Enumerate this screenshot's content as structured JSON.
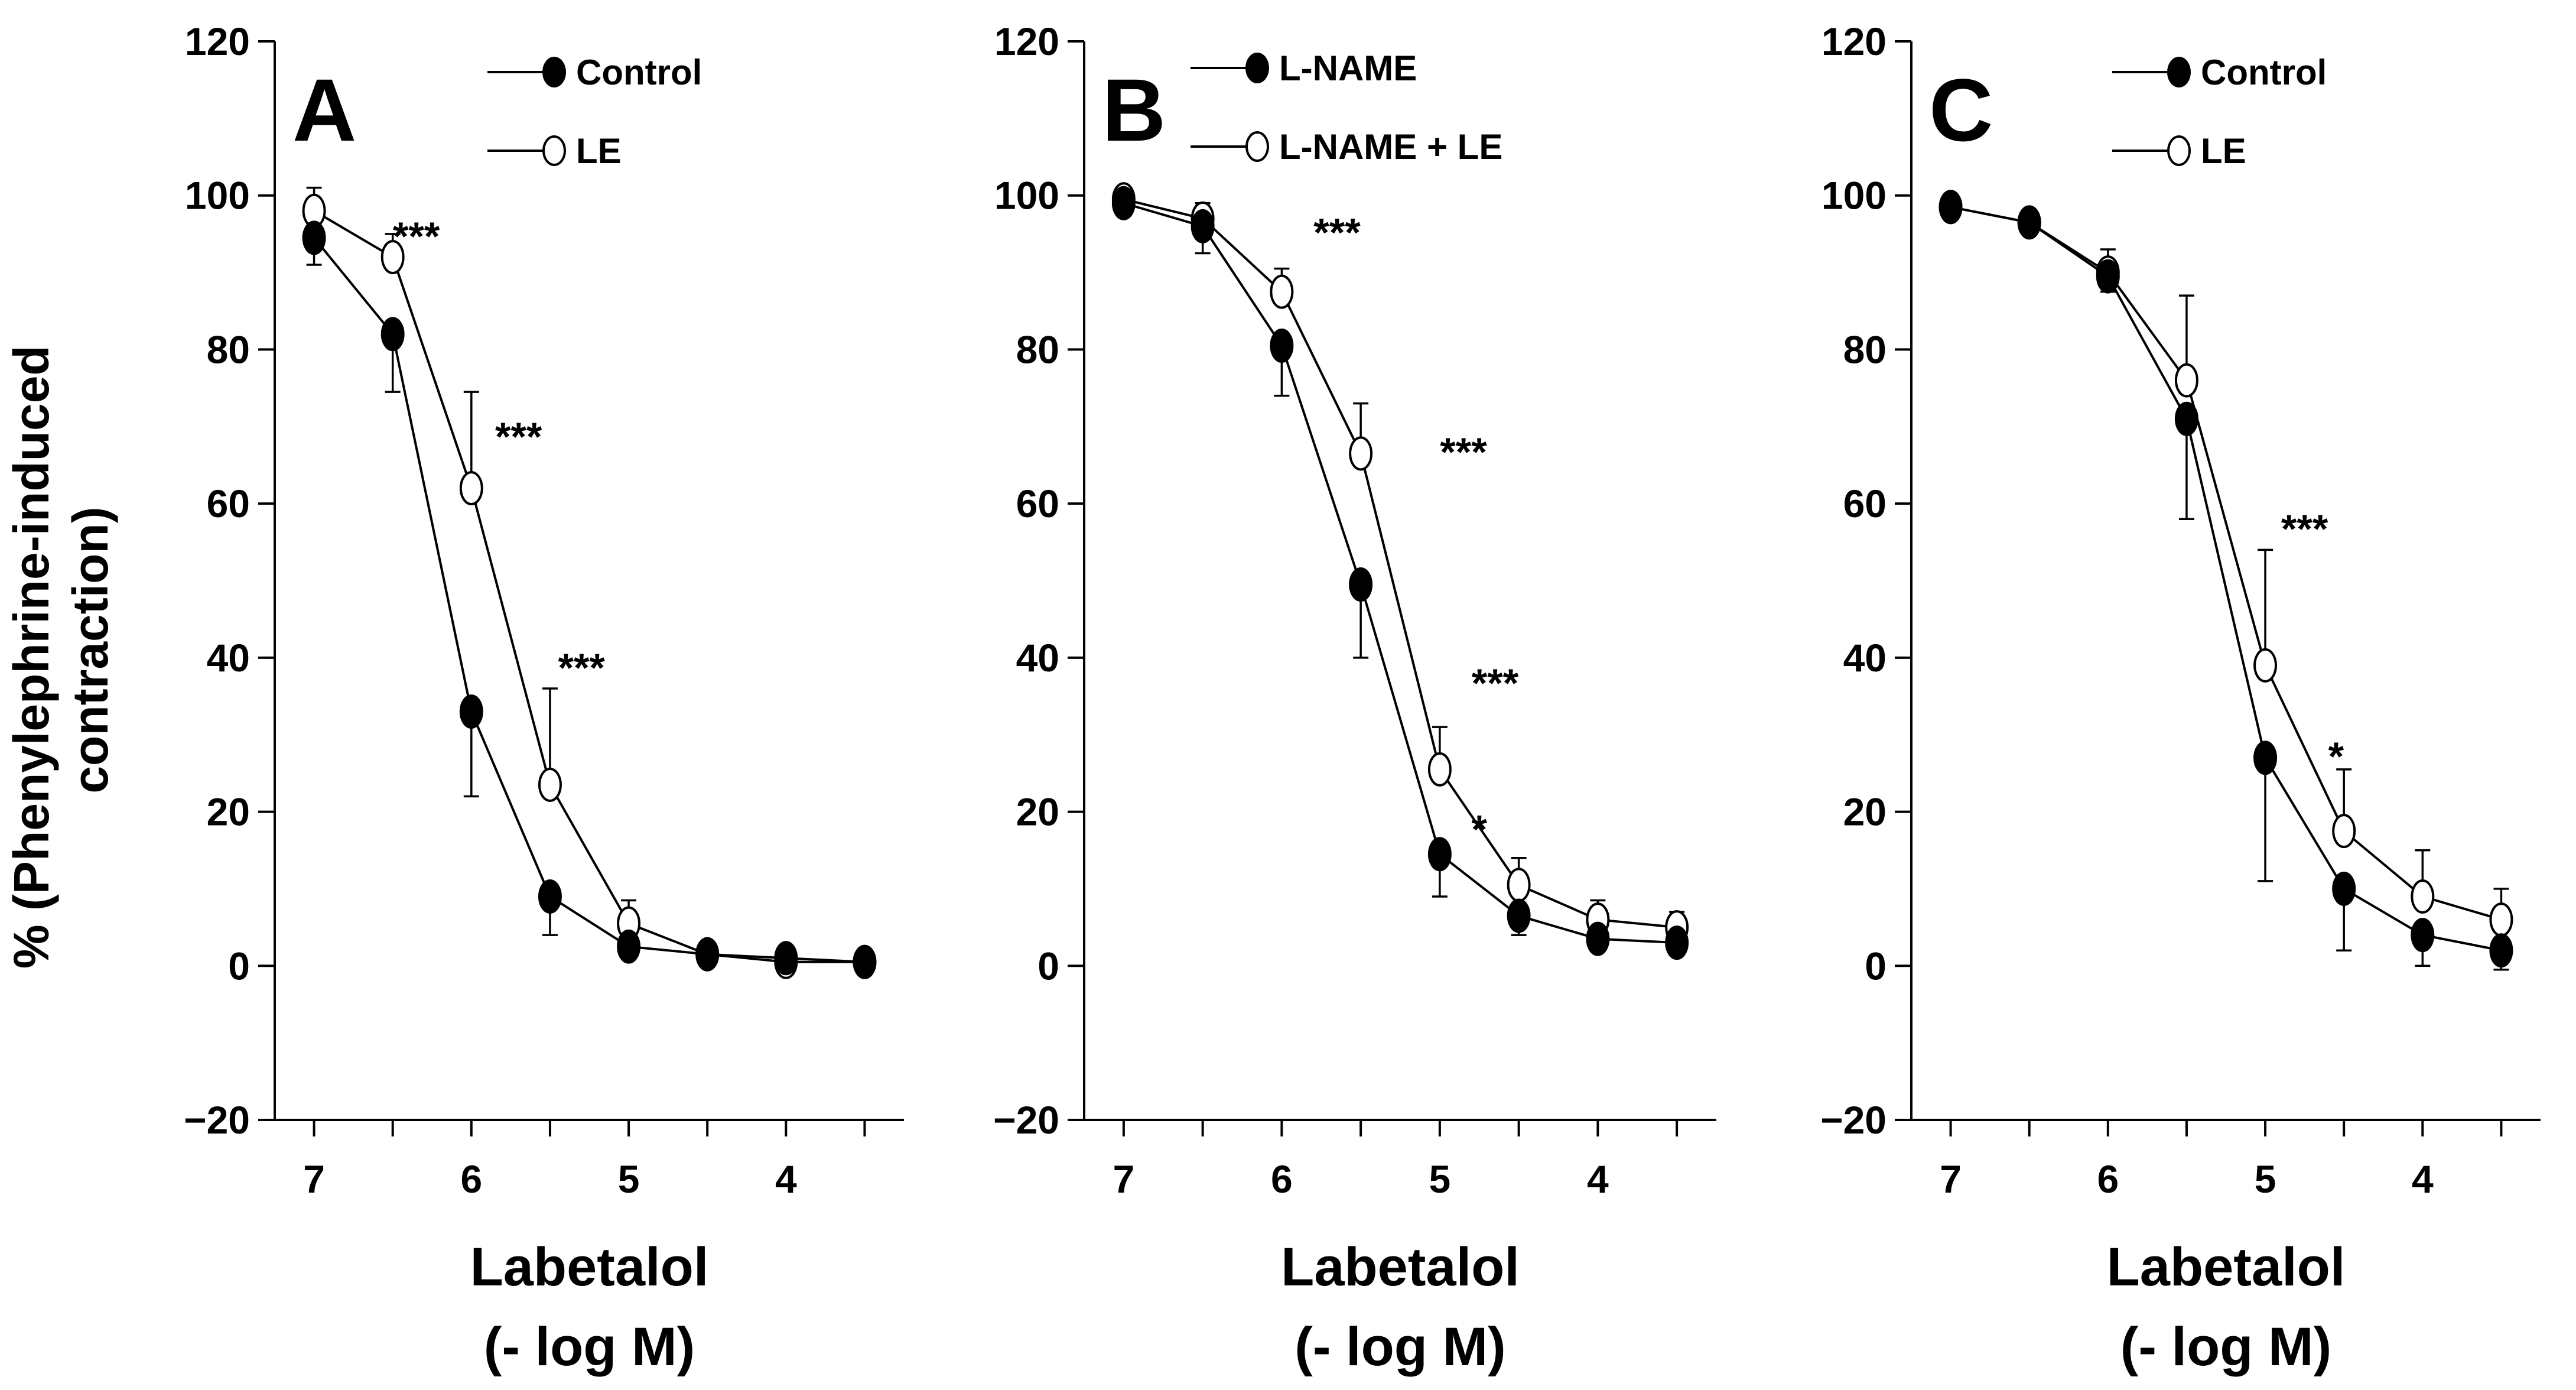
{
  "ylabel": [
    "% (Phenylephrine-induced",
    "contraction)"
  ],
  "chart_data": [
    {
      "type": "line",
      "panel_label": "A",
      "xlabel": [
        "Labetalol",
        "(- log M)"
      ],
      "ylabel": "% (Phenylephrine-induced contraction)",
      "xlim": [
        7.25,
        3.25
      ],
      "ylim": [
        -20,
        120
      ],
      "yticks": [
        -20,
        0,
        20,
        40,
        60,
        80,
        100,
        120
      ],
      "ytick_labels": [
        "−20",
        "0",
        "20",
        "40",
        "60",
        "80",
        "100",
        "120"
      ],
      "xticks": [
        7,
        6,
        5,
        4
      ],
      "xtick_labels": [
        "7",
        "6",
        "5",
        "4"
      ],
      "x": [
        7,
        6.5,
        6,
        5.5,
        5,
        4.5,
        4,
        3.5
      ],
      "legend_position": "top-right",
      "grid": false,
      "series": [
        {
          "name": "Control",
          "marker": "filled",
          "y": [
            94.5,
            82,
            33,
            9,
            2.5,
            1.5,
            1,
            0.5
          ],
          "err": [
            3.5,
            7.5,
            11,
            5,
            1.5,
            1,
            1,
            1
          ]
        },
        {
          "name": "LE",
          "marker": "open",
          "y": [
            98,
            92,
            62,
            23.5,
            5.5,
            1.5,
            0.5,
            0.5
          ],
          "err": [
            3,
            3,
            12.5,
            12.5,
            3,
            1,
            1,
            1
          ]
        }
      ],
      "annotations": [
        {
          "text": "***",
          "x": 6.35,
          "y": 96
        },
        {
          "text": "***",
          "x": 5.7,
          "y": 70
        },
        {
          "text": "***",
          "x": 5.3,
          "y": 40
        }
      ]
    },
    {
      "type": "line",
      "panel_label": "B",
      "xlabel": [
        "Labetalol",
        "(- log M)"
      ],
      "ylabel": "% (Phenylephrine-induced contraction)",
      "xlim": [
        7.25,
        3.25
      ],
      "ylim": [
        -20,
        120
      ],
      "yticks": [
        -20,
        0,
        20,
        40,
        60,
        80,
        100,
        120
      ],
      "ytick_labels": [
        "−20",
        "0",
        "20",
        "40",
        "60",
        "80",
        "100",
        "120"
      ],
      "xticks": [
        7,
        6,
        5,
        4
      ],
      "xtick_labels": [
        "7",
        "6",
        "5",
        "4"
      ],
      "x": [
        7,
        6.5,
        6,
        5.5,
        5,
        4.5,
        4,
        3.5
      ],
      "legend_position": "top-right",
      "grid": false,
      "series": [
        {
          "name": "L-NAME",
          "marker": "filled",
          "y": [
            99,
            96,
            80.5,
            49.5,
            14.5,
            6.5,
            3.5,
            3
          ],
          "err": [
            1.5,
            3.5,
            6.5,
            9.5,
            5.5,
            2.5,
            1.5,
            1
          ]
        },
        {
          "name": "L-NAME + LE",
          "marker": "open",
          "y": [
            99.5,
            97,
            87.5,
            66.5,
            25.5,
            10.5,
            6,
            5
          ],
          "err": [
            1,
            2,
            3,
            6.5,
            5.5,
            3.5,
            2.5,
            2
          ]
        }
      ],
      "annotations": [
        {
          "text": "***",
          "x": 5.65,
          "y": 96.5
        },
        {
          "text": "***",
          "x": 4.85,
          "y": 68
        },
        {
          "text": "***",
          "x": 4.65,
          "y": 38
        },
        {
          "text": "*",
          "x": 4.75,
          "y": 19
        }
      ]
    },
    {
      "type": "line",
      "panel_label": "C",
      "xlabel": [
        "Labetalol",
        "(- log M)"
      ],
      "ylabel": "% (Phenylephrine-induced contraction)",
      "xlim": [
        7.25,
        3.25
      ],
      "ylim": [
        -20,
        120
      ],
      "yticks": [
        -20,
        0,
        20,
        40,
        60,
        80,
        100,
        120
      ],
      "ytick_labels": [
        "−20",
        "0",
        "20",
        "40",
        "60",
        "80",
        "100",
        "120"
      ],
      "xticks": [
        7,
        6,
        5,
        4
      ],
      "xtick_labels": [
        "7",
        "6",
        "5",
        "4"
      ],
      "x": [
        7,
        6.5,
        6,
        5.5,
        5,
        4.5,
        4,
        3.5
      ],
      "legend_position": "top-right",
      "grid": false,
      "series": [
        {
          "name": "Control",
          "marker": "filled",
          "y": [
            98.5,
            96.5,
            89.5,
            71,
            27,
            10,
            4,
            2
          ],
          "err": [
            1.5,
            1.5,
            2,
            13,
            16,
            8,
            4,
            2.5
          ]
        },
        {
          "name": "LE",
          "marker": "open",
          "y": [
            98.5,
            96.5,
            90,
            76,
            39,
            17.5,
            9,
            6
          ],
          "err": [
            1.5,
            1.5,
            3,
            11,
            15,
            8,
            6,
            4
          ]
        }
      ],
      "annotations": [
        {
          "text": "***",
          "x": 4.75,
          "y": 58
        },
        {
          "text": "*",
          "x": 4.55,
          "y": 28.5
        }
      ]
    }
  ]
}
